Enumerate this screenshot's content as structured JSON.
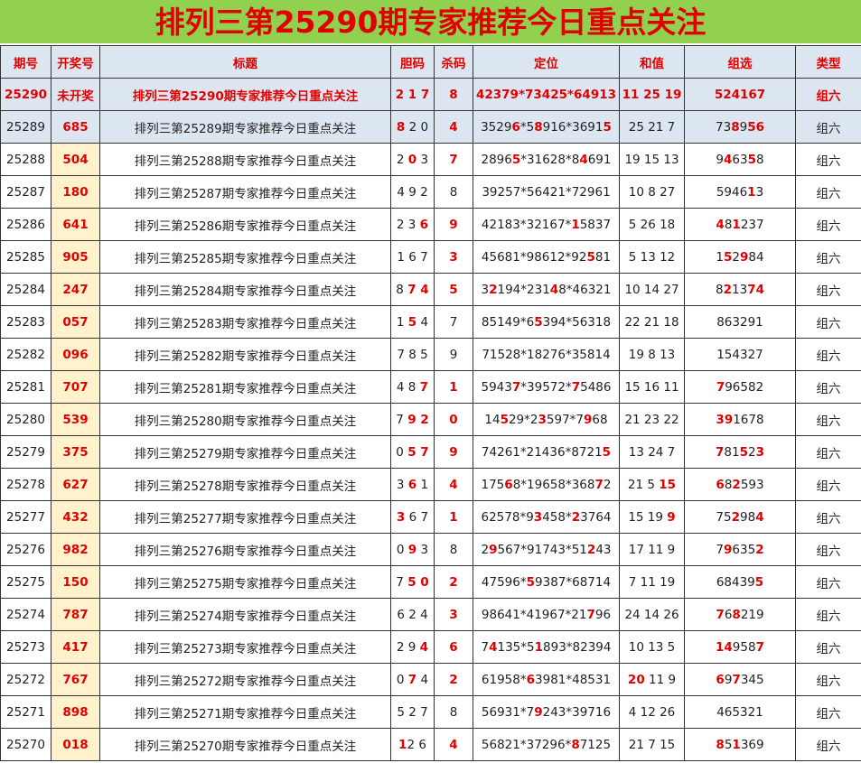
{
  "title": "排列三第25290期专家推荐今日重点关注",
  "table": {
    "columns": [
      "期号",
      "开奖号",
      "标题",
      "胆码",
      "杀码",
      "定位",
      "和值",
      "组选",
      "类型"
    ],
    "rows": [
      [
        [
          {
            "t": "25290",
            "hot": true
          }
        ],
        "未开奖",
        [
          {
            "t": "排列三第25290期专家推荐今日重点关注",
            "hot": true
          }
        ],
        [
          {
            "t": "2 1 7",
            "hot": true
          }
        ],
        [
          {
            "t": "8",
            "hot": true
          }
        ],
        [
          {
            "t": "42379*73425*64913",
            "hot": true
          }
        ],
        [
          {
            "t": "11 25 19",
            "hot": true
          }
        ],
        [
          {
            "t": "524167",
            "hot": true
          }
        ],
        [
          {
            "t": "组六",
            "hot": true
          }
        ]
      ],
      [
        "25289",
        "685",
        "排列三第25289期专家推荐今日重点关注",
        [
          {
            "t": "8",
            "hot": true
          },
          {
            "t": " 2 0"
          }
        ],
        [
          {
            "t": "4",
            "hot": true
          }
        ],
        [
          {
            "t": "3529"
          },
          {
            "t": "6",
            "hot": true
          },
          {
            "t": "*5"
          },
          {
            "t": "8",
            "hot": true
          },
          {
            "t": "916*3691"
          },
          {
            "t": "5",
            "hot": true
          }
        ],
        "25 21 7",
        [
          {
            "t": "73"
          },
          {
            "t": "8",
            "hot": true
          },
          {
            "t": "9"
          },
          {
            "t": "56",
            "hot": true
          }
        ],
        "组六"
      ],
      [
        "25288",
        "504",
        "排列三第25288期专家推荐今日重点关注",
        [
          {
            "t": "2 "
          },
          {
            "t": "0",
            "hot": true
          },
          {
            "t": " 3"
          }
        ],
        [
          {
            "t": "7",
            "hot": true
          }
        ],
        [
          {
            "t": "2896"
          },
          {
            "t": "5",
            "hot": true
          },
          {
            "t": "*31628*8"
          },
          {
            "t": "4",
            "hot": true
          },
          {
            "t": "691"
          }
        ],
        "19 15 13",
        [
          {
            "t": "9"
          },
          {
            "t": "4",
            "hot": true
          },
          {
            "t": "63"
          },
          {
            "t": "5",
            "hot": true
          },
          {
            "t": "8"
          }
        ],
        "组六"
      ],
      [
        "25287",
        "180",
        "排列三第25287期专家推荐今日重点关注",
        "4 9 2",
        "8",
        "39257*56421*72961",
        "10 8 27",
        [
          {
            "t": "5946"
          },
          {
            "t": "1",
            "hot": true
          },
          {
            "t": "3"
          }
        ],
        "组六"
      ],
      [
        "25286",
        "641",
        "排列三第25286期专家推荐今日重点关注",
        [
          {
            "t": "2 3 "
          },
          {
            "t": "6",
            "hot": true
          }
        ],
        [
          {
            "t": "9",
            "hot": true
          }
        ],
        [
          {
            "t": "42183*32167*"
          },
          {
            "t": "1",
            "hot": true
          },
          {
            "t": "5837"
          }
        ],
        "5 26 18",
        [
          {
            "t": "4",
            "hot": true
          },
          {
            "t": "8"
          },
          {
            "t": "1",
            "hot": true
          },
          {
            "t": "237"
          }
        ],
        "组六"
      ],
      [
        "25285",
        "905",
        "排列三第25285期专家推荐今日重点关注",
        "1 6 7",
        [
          {
            "t": "3",
            "hot": true
          }
        ],
        [
          {
            "t": "45681*98612*92"
          },
          {
            "t": "5",
            "hot": true
          },
          {
            "t": "81"
          }
        ],
        "5 13 12",
        [
          {
            "t": "1"
          },
          {
            "t": "5",
            "hot": true
          },
          {
            "t": "2"
          },
          {
            "t": "9",
            "hot": true
          },
          {
            "t": "84"
          }
        ],
        "组六"
      ],
      [
        "25284",
        "247",
        "排列三第25284期专家推荐今日重点关注",
        [
          {
            "t": "8 "
          },
          {
            "t": "7 4",
            "hot": true
          }
        ],
        [
          {
            "t": "5",
            "hot": true
          }
        ],
        [
          {
            "t": "3"
          },
          {
            "t": "2",
            "hot": true
          },
          {
            "t": "194*231"
          },
          {
            "t": "4",
            "hot": true
          },
          {
            "t": "8*46321"
          }
        ],
        "10 14 27",
        [
          {
            "t": "8"
          },
          {
            "t": "2",
            "hot": true
          },
          {
            "t": "13"
          },
          {
            "t": "74",
            "hot": true
          }
        ],
        "组六"
      ],
      [
        "25283",
        "057",
        "排列三第25283期专家推荐今日重点关注",
        [
          {
            "t": "1 "
          },
          {
            "t": "5",
            "hot": true
          },
          {
            "t": " 4"
          }
        ],
        "7",
        [
          {
            "t": "85149*6"
          },
          {
            "t": "5",
            "hot": true
          },
          {
            "t": "394*56318"
          }
        ],
        "22 21 18",
        "863291",
        "组六"
      ],
      [
        "25282",
        "096",
        "排列三第25282期专家推荐今日重点关注",
        "7 8 5",
        "9",
        "71528*18276*35814",
        "19 8 13",
        "154327",
        "组六"
      ],
      [
        "25281",
        "707",
        "排列三第25281期专家推荐今日重点关注",
        [
          {
            "t": "4 8 "
          },
          {
            "t": "7",
            "hot": true
          }
        ],
        [
          {
            "t": "1",
            "hot": true
          }
        ],
        [
          {
            "t": "5943"
          },
          {
            "t": "7",
            "hot": true
          },
          {
            "t": "*39572*"
          },
          {
            "t": "7",
            "hot": true
          },
          {
            "t": "5486"
          }
        ],
        "15 16 11",
        [
          {
            "t": "7",
            "hot": true
          },
          {
            "t": "96582"
          }
        ],
        "组六"
      ],
      [
        "25280",
        "539",
        "排列三第25280期专家推荐今日重点关注",
        [
          {
            "t": "7 "
          },
          {
            "t": "9 2",
            "hot": true
          }
        ],
        [
          {
            "t": "0",
            "hot": true
          }
        ],
        [
          {
            "t": "14"
          },
          {
            "t": "5",
            "hot": true
          },
          {
            "t": "29*2"
          },
          {
            "t": "3",
            "hot": true
          },
          {
            "t": "597*7"
          },
          {
            "t": "9",
            "hot": true
          },
          {
            "t": "68"
          }
        ],
        "21 23 22",
        [
          {
            "t": "39",
            "hot": true
          },
          {
            "t": "1678"
          }
        ],
        "组六"
      ],
      [
        "25279",
        "375",
        "排列三第25279期专家推荐今日重点关注",
        [
          {
            "t": "0 "
          },
          {
            "t": "5 7",
            "hot": true
          }
        ],
        [
          {
            "t": "9",
            "hot": true
          }
        ],
        [
          {
            "t": "74261*21436*8721"
          },
          {
            "t": "5",
            "hot": true
          }
        ],
        "13 24 7",
        [
          {
            "t": "7",
            "hot": true
          },
          {
            "t": "81"
          },
          {
            "t": "5",
            "hot": true
          },
          {
            "t": "2"
          },
          {
            "t": "3",
            "hot": true
          }
        ],
        "组六"
      ],
      [
        "25278",
        "627",
        "排列三第25278期专家推荐今日重点关注",
        [
          {
            "t": "3 "
          },
          {
            "t": "6",
            "hot": true
          },
          {
            "t": " 1"
          }
        ],
        [
          {
            "t": "4",
            "hot": true
          }
        ],
        [
          {
            "t": "175"
          },
          {
            "t": "6",
            "hot": true
          },
          {
            "t": "8*19658*368"
          },
          {
            "t": "7",
            "hot": true
          },
          {
            "t": "2"
          }
        ],
        [
          {
            "t": "21 5 "
          },
          {
            "t": "15",
            "hot": true
          }
        ],
        [
          {
            "t": "6",
            "hot": true
          },
          {
            "t": "8"
          },
          {
            "t": "2",
            "hot": true
          },
          {
            "t": "593"
          }
        ],
        "组六"
      ],
      [
        "25277",
        "432",
        "排列三第25277期专家推荐今日重点关注",
        [
          {
            "t": "3",
            "hot": true
          },
          {
            "t": " 6 7"
          }
        ],
        [
          {
            "t": "1",
            "hot": true
          }
        ],
        [
          {
            "t": "62578*9"
          },
          {
            "t": "3",
            "hot": true
          },
          {
            "t": "458*"
          },
          {
            "t": "2",
            "hot": true
          },
          {
            "t": "3764"
          }
        ],
        [
          {
            "t": "15 19 "
          },
          {
            "t": "9",
            "hot": true
          }
        ],
        [
          {
            "t": "75"
          },
          {
            "t": "2",
            "hot": true
          },
          {
            "t": "98"
          },
          {
            "t": "4",
            "hot": true
          }
        ],
        "组六"
      ],
      [
        "25276",
        "982",
        "排列三第25276期专家推荐今日重点关注",
        [
          {
            "t": "0 "
          },
          {
            "t": "9",
            "hot": true
          },
          {
            "t": " 3"
          }
        ],
        "8",
        [
          {
            "t": "2"
          },
          {
            "t": "9",
            "hot": true
          },
          {
            "t": "567*91743*51"
          },
          {
            "t": "2",
            "hot": true
          },
          {
            "t": "43"
          }
        ],
        "17 11 9",
        [
          {
            "t": "7"
          },
          {
            "t": "9",
            "hot": true
          },
          {
            "t": "635"
          },
          {
            "t": "2",
            "hot": true
          }
        ],
        "组六"
      ],
      [
        "25275",
        "150",
        "排列三第25275期专家推荐今日重点关注",
        [
          {
            "t": "7 "
          },
          {
            "t": "5 0",
            "hot": true
          }
        ],
        [
          {
            "t": "2",
            "hot": true
          }
        ],
        [
          {
            "t": "47596*"
          },
          {
            "t": "5",
            "hot": true
          },
          {
            "t": "9387*68714"
          }
        ],
        "7 11 19",
        [
          {
            "t": "68439"
          },
          {
            "t": "5",
            "hot": true
          }
        ],
        "组六"
      ],
      [
        "25274",
        "787",
        "排列三第25274期专家推荐今日重点关注",
        "6 2 4",
        [
          {
            "t": "3",
            "hot": true
          }
        ],
        [
          {
            "t": "98641*41967*21"
          },
          {
            "t": "7",
            "hot": true
          },
          {
            "t": "96"
          }
        ],
        "24 14 26",
        [
          {
            "t": "7",
            "hot": true
          },
          {
            "t": "6"
          },
          {
            "t": "8",
            "hot": true
          },
          {
            "t": "219"
          }
        ],
        "组六"
      ],
      [
        "25273",
        "417",
        "排列三第25273期专家推荐今日重点关注",
        [
          {
            "t": "2 9 "
          },
          {
            "t": "4",
            "hot": true
          }
        ],
        [
          {
            "t": "6",
            "hot": true
          }
        ],
        [
          {
            "t": "7"
          },
          {
            "t": "4",
            "hot": true
          },
          {
            "t": "135*5"
          },
          {
            "t": "1",
            "hot": true
          },
          {
            "t": "893*82394"
          }
        ],
        "10 13 5",
        [
          {
            "t": "14",
            "hot": true
          },
          {
            "t": "958"
          },
          {
            "t": "7",
            "hot": true
          }
        ],
        "组六"
      ],
      [
        "25272",
        "767",
        "排列三第25272期专家推荐今日重点关注",
        [
          {
            "t": "0 "
          },
          {
            "t": "7",
            "hot": true
          },
          {
            "t": " 4"
          }
        ],
        [
          {
            "t": "2",
            "hot": true
          }
        ],
        [
          {
            "t": "61958*"
          },
          {
            "t": "6",
            "hot": true
          },
          {
            "t": "3981*48531"
          }
        ],
        [
          {
            "t": "20",
            "hot": true
          },
          {
            "t": " 11 9"
          }
        ],
        [
          {
            "t": "6",
            "hot": true
          },
          {
            "t": "9"
          },
          {
            "t": "7",
            "hot": true
          },
          {
            "t": "345"
          }
        ],
        "组六"
      ],
      [
        "25271",
        "898",
        "排列三第25271期专家推荐今日重点关注",
        "5 2 7",
        "8",
        [
          {
            "t": "56931*7"
          },
          {
            "t": "9",
            "hot": true
          },
          {
            "t": "243*39716"
          }
        ],
        "4 12 26",
        "465321",
        "组六"
      ],
      [
        "25270",
        "018",
        "排列三第25270期专家推荐今日重点关注",
        [
          {
            "t": "1",
            "hot": true
          },
          {
            "t": "2 6"
          }
        ],
        [
          {
            "t": "4",
            "hot": true
          }
        ],
        [
          {
            "t": "56821*37296*"
          },
          {
            "t": "8",
            "hot": true
          },
          {
            "t": "7125"
          }
        ],
        "21 7 15",
        [
          {
            "t": "8",
            "hot": true
          },
          {
            "t": "5"
          },
          {
            "t": "1",
            "hot": true
          },
          {
            "t": "369"
          }
        ],
        "组六"
      ]
    ]
  }
}
